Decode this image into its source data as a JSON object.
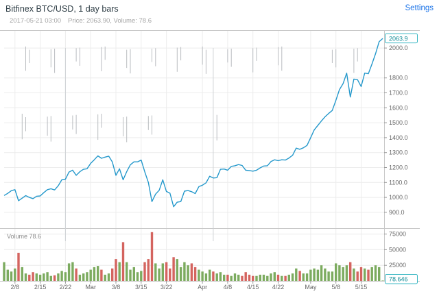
{
  "header": {
    "title": "Bitfinex BTC/USD, 1 day bars",
    "timestamp": "2017-05-21 03:00",
    "readout": "Price: 2063.90, Volume: 78.6",
    "settings_label": "Settings"
  },
  "chart_data": {
    "type": "line",
    "title": "Bitfinex BTC/USD, 1 day bars",
    "start_date": "2/5",
    "end_date": "5/21",
    "price": {
      "values": [
        1013,
        1027,
        1045,
        1052,
        978,
        995,
        1012,
        1000,
        992,
        1008,
        1010,
        1032,
        1052,
        1058,
        1050,
        1078,
        1118,
        1122,
        1170,
        1182,
        1148,
        1172,
        1188,
        1192,
        1228,
        1252,
        1278,
        1262,
        1270,
        1276,
        1238,
        1148,
        1192,
        1118,
        1172,
        1218,
        1238,
        1238,
        1250,
        1172,
        1100,
        972,
        1022,
        1048,
        1118,
        1040,
        1028,
        938,
        968,
        972,
        1042,
        1046,
        1038,
        1026,
        1072,
        1082,
        1098,
        1142,
        1130,
        1132,
        1188,
        1190,
        1182,
        1208,
        1212,
        1220,
        1214,
        1182,
        1180,
        1176,
        1182,
        1198,
        1210,
        1212,
        1240,
        1252,
        1246,
        1252,
        1250,
        1264,
        1282,
        1330,
        1322,
        1332,
        1348,
        1400,
        1452,
        1482,
        1512,
        1540,
        1562,
        1582,
        1650,
        1722,
        1762,
        1832,
        1672,
        1792,
        1788,
        1742,
        1832,
        1828,
        1892,
        1962,
        2042,
        2064
      ]
    },
    "volume": {
      "values": [
        30000,
        18000,
        15000,
        20000,
        45000,
        22000,
        12000,
        10000,
        14000,
        12000,
        10000,
        12000,
        14000,
        8000,
        9000,
        12000,
        16000,
        14000,
        28000,
        30000,
        20000,
        10000,
        12000,
        14000,
        18000,
        22000,
        24000,
        18000,
        10000,
        12000,
        20000,
        35000,
        30000,
        62000,
        30000,
        18000,
        22000,
        14000,
        16000,
        30000,
        35000,
        78000,
        28000,
        20000,
        28000,
        30000,
        20000,
        38000,
        35000,
        22000,
        30000,
        25000,
        28000,
        22000,
        18000,
        15000,
        12000,
        18000,
        15000,
        12000,
        14000,
        10000,
        10000,
        8000,
        12000,
        10000,
        8000,
        14000,
        10000,
        8000,
        8000,
        10000,
        10000,
        8000,
        12000,
        14000,
        10000,
        8000,
        8000,
        10000,
        12000,
        20000,
        16000,
        12000,
        12000,
        18000,
        20000,
        18000,
        25000,
        20000,
        15000,
        15000,
        28000,
        25000,
        22000,
        25000,
        30000,
        20000,
        15000,
        22000,
        20000,
        18000,
        22000,
        25000,
        22000,
        79
      ]
    },
    "price_axis": {
      "last": {
        "label": "2063.9",
        "value": 2063.9
      },
      "ticks": [
        {
          "label": "2000.0",
          "value": 2000
        },
        {
          "label": "1800.0",
          "value": 1800
        },
        {
          "label": "1700.0",
          "value": 1700
        },
        {
          "label": "1600.0",
          "value": 1600
        },
        {
          "label": "1500.0",
          "value": 1500
        },
        {
          "label": "1400.0",
          "value": 1400
        },
        {
          "label": "1300.0",
          "value": 1300
        },
        {
          "label": "1200.0",
          "value": 1200
        },
        {
          "label": "1100.0",
          "value": 1100
        },
        {
          "label": "1000.0",
          "value": 1000
        },
        {
          "label": "900.0",
          "value": 900
        }
      ],
      "range": [
        808,
        2115
      ]
    },
    "volume_axis": {
      "last": {
        "label": "78.646",
        "value": 78.646
      },
      "ticks": [
        {
          "label": "75000",
          "value": 75000
        },
        {
          "label": "50000",
          "value": 50000
        },
        {
          "label": "25000",
          "value": 25000
        }
      ],
      "range": [
        0,
        80000
      ]
    },
    "x_axis": {
      "ticks": [
        {
          "label": "2/8",
          "day": 3
        },
        {
          "label": "2/15",
          "day": 10
        },
        {
          "label": "2/22",
          "day": 17
        },
        {
          "label": "Mar",
          "day": 24
        },
        {
          "label": "3/8",
          "day": 31
        },
        {
          "label": "3/15",
          "day": 38
        },
        {
          "label": "3/22",
          "day": 45
        },
        {
          "label": "Apr",
          "day": 55
        },
        {
          "label": "4/8",
          "day": 62
        },
        {
          "label": "4/15",
          "day": 69
        },
        {
          "label": "4/22",
          "day": 76
        },
        {
          "label": "May",
          "day": 85
        },
        {
          "label": "5/8",
          "day": 92
        },
        {
          "label": "5/15",
          "day": 99
        }
      ]
    },
    "volume_pane_label": "Volume 78.6",
    "artifact_marks": {
      "upper_price_range": [
        1830,
        2010
      ],
      "lower_price_range": [
        1370,
        1560
      ],
      "upper_days": [
        6,
        7,
        13,
        14,
        20,
        21,
        27,
        28,
        34,
        35,
        41,
        42,
        48,
        49,
        55,
        56,
        62,
        63,
        69,
        70,
        76,
        77,
        91,
        92,
        97,
        98
      ],
      "lower_days": [
        5,
        6,
        12,
        13,
        19,
        20,
        26,
        27,
        33,
        34,
        40,
        41,
        59
      ],
      "full_days": [
        17,
        58
      ]
    },
    "colors": {
      "line": "#2498cb",
      "up": "#7cab5f",
      "down": "#d4645f",
      "grid": "#ececec",
      "frame": "#c8c8c8",
      "axis_text": "#666666",
      "tag_border": "#3bb8c4",
      "tag_text": "#0f8a96",
      "artifact": "#b9bcc0",
      "settings_link": "#1a73e8"
    }
  }
}
